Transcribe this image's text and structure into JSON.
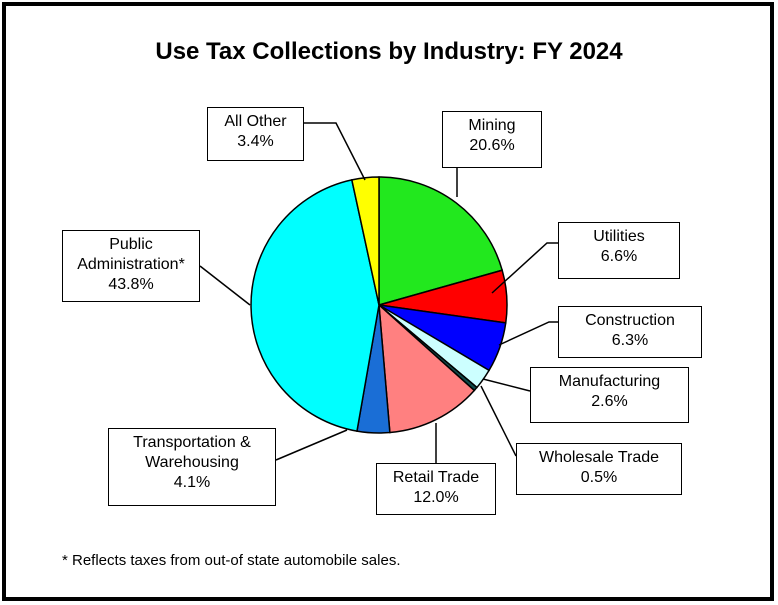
{
  "chart_data": {
    "type": "pie",
    "title": "Use Tax Collections by Industry: FY 2024",
    "slices": [
      {
        "name": "Mining",
        "value": 20.6,
        "pct": "20.6%",
        "color": "#22e81e"
      },
      {
        "name": "Utilities",
        "value": 6.6,
        "pct": "6.6%",
        "color": "#ff0000"
      },
      {
        "name": "Construction",
        "value": 6.3,
        "pct": "6.3%",
        "color": "#0000ff"
      },
      {
        "name": "Manufacturing",
        "value": 2.6,
        "pct": "2.6%",
        "color": "#ccffff"
      },
      {
        "name": "Wholesale Trade",
        "value": 0.5,
        "pct": "0.5%",
        "color": "#0f4a4a"
      },
      {
        "name": "Retail Trade",
        "value": 12.0,
        "pct": "12.0%",
        "color": "#ff8080"
      },
      {
        "name": "Transportation & Warehousing",
        "value": 4.1,
        "pct": "4.1%",
        "color": "#1a6ed6"
      },
      {
        "name": "Public Administration*",
        "value": 43.8,
        "pct": "43.8%",
        "color": "#00ffff"
      },
      {
        "name": "All Other",
        "value": 3.4,
        "pct": "3.4%",
        "color": "#ffff00"
      }
    ],
    "labels": [
      {
        "lines": [
          "Mining"
        ],
        "pct": "20.6%"
      },
      {
        "lines": [
          "Utilities"
        ],
        "pct": "6.6%"
      },
      {
        "lines": [
          "Construction"
        ],
        "pct": "6.3%"
      },
      {
        "lines": [
          "Manufacturing"
        ],
        "pct": "2.6%"
      },
      {
        "lines": [
          "Wholesale Trade"
        ],
        "pct": "0.5%"
      },
      {
        "lines": [
          "Retail Trade"
        ],
        "pct": "12.0%"
      },
      {
        "lines": [
          "Transportation &",
          "Warehousing"
        ],
        "pct": "4.1%"
      },
      {
        "lines": [
          "Public",
          "Administration*"
        ],
        "pct": "43.8%"
      },
      {
        "lines": [
          "All Other"
        ],
        "pct": "3.4%"
      }
    ]
  },
  "footnote": "* Reflects taxes from out-of state automobile sales."
}
